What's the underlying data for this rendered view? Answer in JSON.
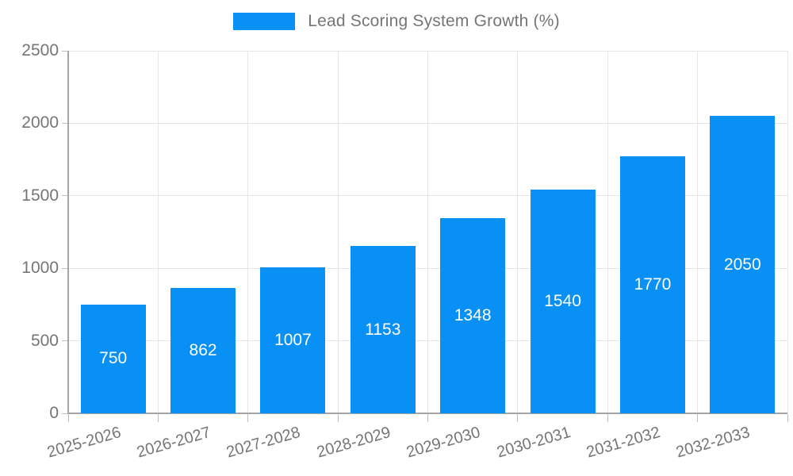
{
  "legend": {
    "label": "Lead Scoring System Growth (%)"
  },
  "colors": {
    "bar": "#0990f4",
    "grid": "#e6e6e6",
    "axis": "#a6a6a6",
    "tick": "#bdbdbd",
    "text": "#757575",
    "value_label": "#ffffff"
  },
  "chart_data": {
    "type": "bar",
    "title": "Lead Scoring System Growth (%)",
    "categories": [
      "2025-2026",
      "2026-2027",
      "2027-2028",
      "2028-2029",
      "2029-2030",
      "2030-2031",
      "2031-2032",
      "2032-2033"
    ],
    "values": [
      750,
      862,
      1007,
      1153,
      1348,
      1540,
      1770,
      2050
    ],
    "xlabel": "",
    "ylabel": "",
    "ylim": [
      0,
      2500
    ],
    "ytick_step": 500,
    "yticks": [
      0,
      500,
      1000,
      1500,
      2000,
      2500
    ],
    "grid": true,
    "legend_position": "top",
    "value_labels": "inside-center"
  }
}
